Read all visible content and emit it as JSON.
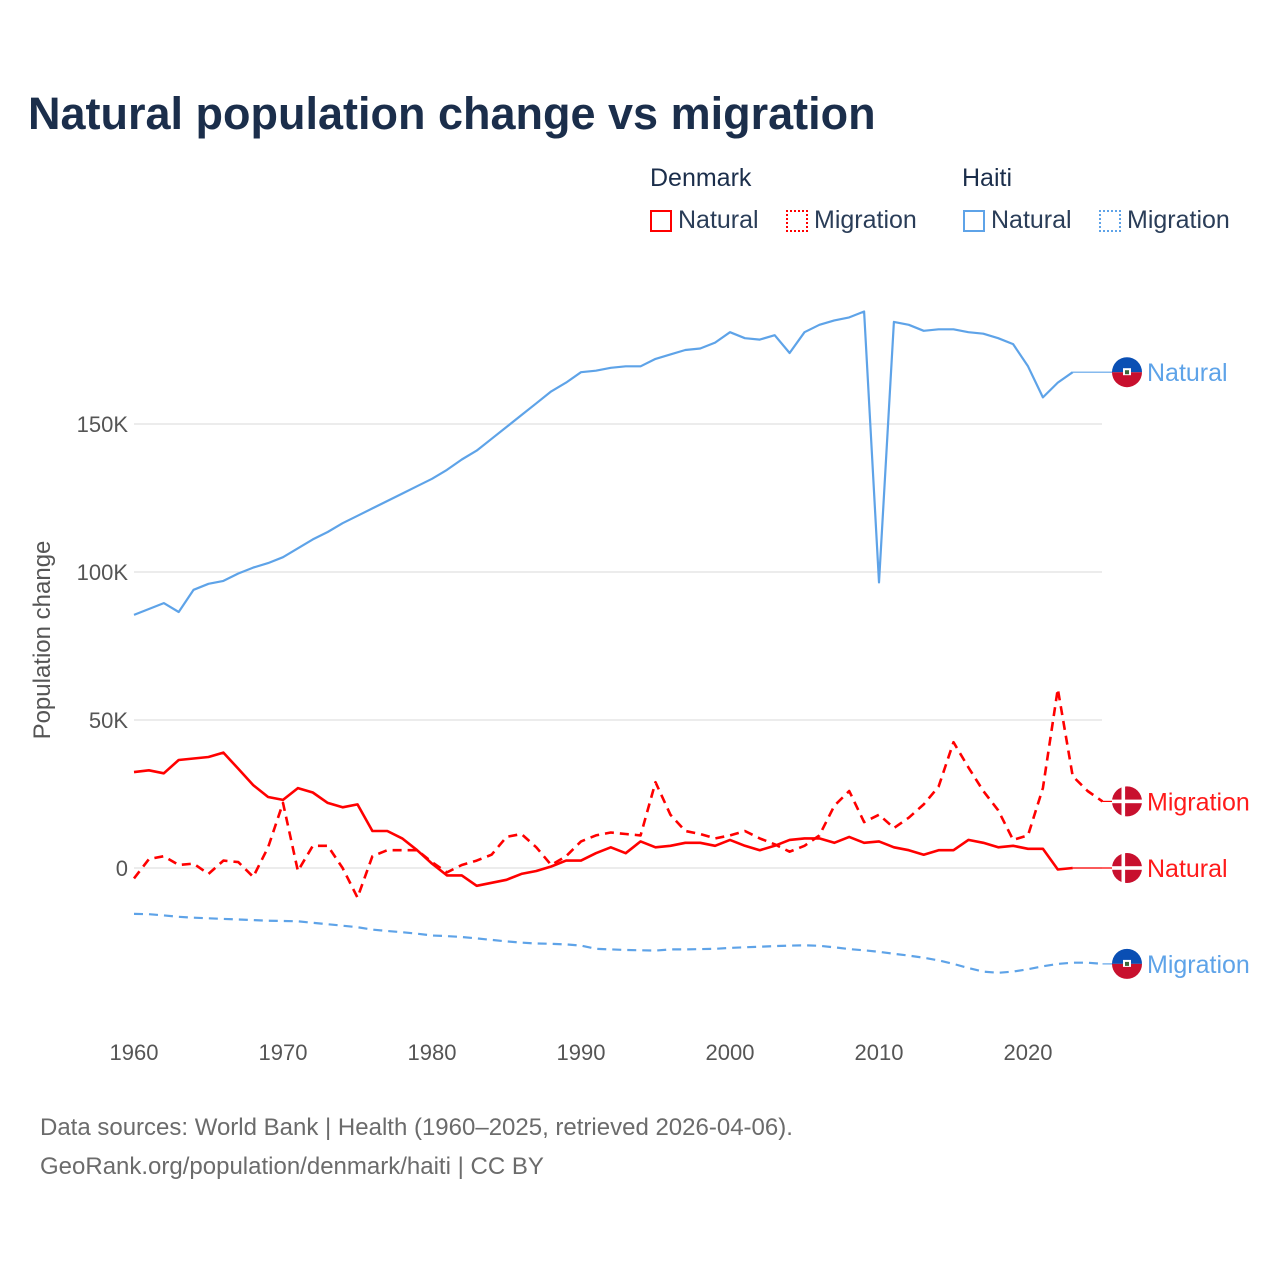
{
  "chart_data": {
    "type": "line",
    "title": "Natural population change vs migration",
    "xlabel": "",
    "ylabel": "Population change",
    "xlim": [
      1960,
      2025
    ],
    "ylim": [
      -45000,
      200000
    ],
    "x_ticks": [
      "1960",
      "1970",
      "1980",
      "1990",
      "2000",
      "2010",
      "2020"
    ],
    "y_ticks": [
      {
        "v": 0,
        "label": "0"
      },
      {
        "v": 50000,
        "label": "50K"
      },
      {
        "v": 100000,
        "label": "100K"
      },
      {
        "v": 150000,
        "label": "150K"
      }
    ],
    "grid": true,
    "legend": {
      "placement": "top-right",
      "groups": [
        {
          "name": "Denmark",
          "items": [
            "Natural",
            "Migration"
          ]
        },
        {
          "name": "Haiti",
          "items": [
            "Natural",
            "Migration"
          ]
        }
      ]
    },
    "start_year": 1960,
    "series": [
      {
        "country": "Denmark",
        "name": "Natural",
        "color": "#ff0000",
        "dash": false,
        "flag": "denmark-flag",
        "end_label": "Natural",
        "values": [
          32400,
          33000,
          32000,
          36500,
          37000,
          37500,
          39000,
          33500,
          28000,
          24000,
          23000,
          27000,
          25500,
          22000,
          20500,
          21500,
          12500,
          12500,
          10000,
          6000,
          1500,
          -2500,
          -2500,
          -6000,
          -5000,
          -4000,
          -2000,
          -1000,
          500,
          2500,
          2500,
          5000,
          7000,
          5000,
          9000,
          7000,
          7500,
          8500,
          8500,
          7500,
          9500,
          7500,
          6000,
          7500,
          9500,
          10000,
          10000,
          8500,
          10500,
          8500,
          9000,
          7000,
          6000,
          4500,
          6000,
          6000,
          9500,
          8500,
          7000,
          7500,
          6500,
          6500,
          -500,
          0
        ]
      },
      {
        "country": "Denmark",
        "name": "Migration",
        "color": "#ff0000",
        "dash": true,
        "flag": "denmark-flag",
        "end_label": "Migration",
        "values": [
          -3500,
          3000,
          4000,
          1000,
          1500,
          -2000,
          2500,
          2000,
          -3000,
          7000,
          22000,
          -1000,
          7500,
          7500,
          0,
          -10000,
          4000,
          6000,
          6000,
          6000,
          2000,
          -1500,
          1000,
          2500,
          4500,
          10500,
          11500,
          7000,
          1000,
          4000,
          9000,
          11000,
          12000,
          11500,
          11000,
          29000,
          18000,
          12500,
          11500,
          10000,
          11000,
          12500,
          10000,
          8000,
          5500,
          7500,
          11000,
          21000,
          26000,
          15500,
          18000,
          13500,
          17000,
          21500,
          27500,
          42500,
          34000,
          26000,
          19500,
          9500,
          11000,
          27000,
          60500,
          31000,
          26000,
          22500
        ]
      },
      {
        "country": "Haiti",
        "name": "Natural",
        "color": "#5ea3e8",
        "dash": false,
        "flag": "haiti-flag",
        "end_label": "Natural",
        "values": [
          85500,
          87500,
          89500,
          86500,
          94000,
          96000,
          97000,
          99500,
          101500,
          103000,
          105000,
          108000,
          111000,
          113500,
          116500,
          119000,
          121500,
          124000,
          126500,
          129000,
          131500,
          134500,
          138000,
          141000,
          145000,
          149000,
          153000,
          157000,
          161000,
          164000,
          167500,
          168000,
          169000,
          169500,
          169500,
          172000,
          173500,
          175000,
          175500,
          177500,
          181000,
          179000,
          178500,
          180000,
          174000,
          181000,
          183500,
          185000,
          186000,
          188000,
          96500,
          184500,
          183500,
          181500,
          182000,
          182000,
          181000,
          180500,
          179000,
          177000,
          169500,
          159000,
          164000,
          167500
        ]
      },
      {
        "country": "Haiti",
        "name": "Migration",
        "color": "#5ea3e8",
        "dash": true,
        "flag": "haiti-flag",
        "end_label": "Migration",
        "values": [
          -15500,
          -15600,
          -16000,
          -16500,
          -16800,
          -17000,
          -17200,
          -17400,
          -17600,
          -17800,
          -17900,
          -18000,
          -18500,
          -19000,
          -19500,
          -20000,
          -20800,
          -21300,
          -21700,
          -22200,
          -22800,
          -23000,
          -23300,
          -23800,
          -24300,
          -24800,
          -25200,
          -25500,
          -25600,
          -25800,
          -26200,
          -27300,
          -27500,
          -27700,
          -27800,
          -27900,
          -27500,
          -27500,
          -27400,
          -27300,
          -27000,
          -26800,
          -26600,
          -26400,
          -26200,
          -26100,
          -26300,
          -26800,
          -27400,
          -27800,
          -28300,
          -29000,
          -29600,
          -30300,
          -31200,
          -32400,
          -33800,
          -35000,
          -35400,
          -35000,
          -34200,
          -33200,
          -32400,
          -32000,
          -32000,
          -32400
        ]
      }
    ]
  },
  "footer": {
    "line1": "Data sources: World Bank | Health (1960–2025, retrieved 2026-04-06).",
    "line2": "GeoRank.org/population/denmark/haiti | CC BY"
  }
}
